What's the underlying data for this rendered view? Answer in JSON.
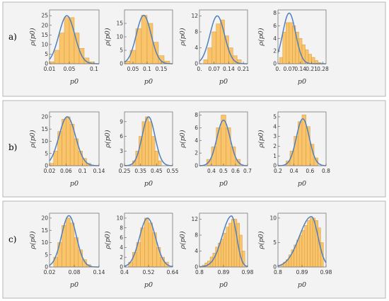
{
  "row_labels": [
    "a)",
    "b)",
    "c)"
  ],
  "chart_data": [
    {
      "type": "bar",
      "row": 0,
      "col": 0,
      "xlabel": "p0",
      "ylabel": "ρ(p0)",
      "xlim": [
        0.01,
        0.11
      ],
      "ylim": [
        0,
        28
      ],
      "xticks": [
        0.01,
        0.05,
        0.1
      ],
      "xtick_labels": [
        "0.01",
        "0.05",
        "0.1"
      ],
      "yticks": [
        0,
        5,
        10,
        15,
        20,
        25
      ],
      "ytick_labels": [
        "0",
        "5",
        "10",
        "15",
        "20",
        "25"
      ],
      "bin_edges": [
        0.01,
        0.02,
        0.03,
        0.04,
        0.05,
        0.06,
        0.07,
        0.08,
        0.09,
        0.1
      ],
      "values": [
        1,
        7,
        16,
        24,
        24,
        16,
        8,
        3,
        1
      ],
      "curve": {
        "mu": 0.045,
        "sigma": 0.016,
        "peak": 25
      }
    },
    {
      "type": "bar",
      "row": 0,
      "col": 1,
      "xlabel": "p0",
      "ylabel": "ρ(p0)",
      "xlim": [
        0.02,
        0.19
      ],
      "ylim": [
        0,
        20
      ],
      "xticks": [
        0.05,
        0.1,
        0.15
      ],
      "xtick_labels": [
        "0.05",
        "0.1",
        "0.15"
      ],
      "yticks": [
        0,
        5,
        10,
        15
      ],
      "ytick_labels": [
        "0",
        "5",
        "10",
        "15"
      ],
      "bin_edges": [
        0.02,
        0.04,
        0.06,
        0.08,
        0.1,
        0.12,
        0.14,
        0.16,
        0.18
      ],
      "values": [
        1,
        5,
        13,
        18,
        15,
        8,
        3,
        1
      ],
      "curve": {
        "mu": 0.088,
        "sigma": 0.026,
        "peak": 18
      }
    },
    {
      "type": "bar",
      "row": 0,
      "col": 2,
      "xlabel": "p0",
      "ylabel": "ρ(p0)",
      "xlim": [
        0,
        0.23
      ],
      "ylim": [
        0,
        13.5
      ],
      "xticks": [
        0,
        0.07,
        0.14,
        0.21
      ],
      "xtick_labels": [
        "0.",
        "0.07",
        "0.14",
        "0.21"
      ],
      "yticks": [
        0,
        4,
        8,
        12
      ],
      "ytick_labels": [
        "0",
        "4",
        "8",
        "12"
      ],
      "bin_edges": [
        0.02,
        0.04,
        0.06,
        0.08,
        0.1,
        0.12,
        0.14,
        0.16,
        0.18,
        0.2
      ],
      "values": [
        1,
        4,
        8,
        10,
        11,
        7,
        4,
        2,
        1
      ],
      "curve": {
        "mu": 0.085,
        "sigma": 0.035,
        "peak": 12
      }
    },
    {
      "type": "bar",
      "row": 0,
      "col": 3,
      "xlabel": "p0",
      "ylabel": "ρ(p0)",
      "xlim": [
        0,
        0.3
      ],
      "ylim": [
        0,
        8.5
      ],
      "xticks": [
        0,
        0.07,
        0.14,
        0.21,
        0.28
      ],
      "xtick_labels": [
        "0.",
        "0.07",
        "0.14",
        "0.21",
        "0.28"
      ],
      "yticks": [
        0,
        2,
        4,
        6,
        8
      ],
      "ytick_labels": [
        "0",
        "2",
        "4",
        "6",
        "8"
      ],
      "bin_edges": [
        0.01,
        0.03,
        0.05,
        0.07,
        0.09,
        0.11,
        0.13,
        0.15,
        0.17,
        0.19,
        0.21,
        0.23,
        0.25,
        0.27
      ],
      "values": [
        1,
        5,
        6.5,
        6.5,
        6,
        5,
        4,
        3,
        2.2,
        1.5,
        1,
        0.5,
        0.2
      ],
      "curve": {
        "mu": 0.07,
        "sigma": 0.04,
        "peak": 8
      }
    },
    {
      "type": "bar",
      "row": 1,
      "col": 0,
      "xlabel": "p0",
      "ylabel": "ρ(p0)",
      "xlim": [
        0.02,
        0.14
      ],
      "ylim": [
        0,
        22
      ],
      "xticks": [
        0.02,
        0.06,
        0.1,
        0.14
      ],
      "xtick_labels": [
        "0.02",
        "0.06",
        "0.1",
        "0.14"
      ],
      "yticks": [
        0,
        5,
        10,
        15,
        20
      ],
      "ytick_labels": [
        "0",
        "5",
        "10",
        "15",
        "20"
      ],
      "bin_edges": [
        0.02,
        0.03,
        0.04,
        0.05,
        0.06,
        0.07,
        0.08,
        0.09,
        0.1,
        0.11,
        0.12
      ],
      "values": [
        1,
        6,
        14,
        19,
        20,
        17,
        11,
        6,
        3,
        1
      ],
      "curve": {
        "mu": 0.063,
        "sigma": 0.02,
        "peak": 20
      }
    },
    {
      "type": "bar",
      "row": 1,
      "col": 1,
      "xlabel": "p0",
      "ylabel": "ρ(p0)",
      "xlim": [
        0.25,
        0.55
      ],
      "ylim": [
        0,
        11
      ],
      "xticks": [
        0.25,
        0.35,
        0.45,
        0.55
      ],
      "xtick_labels": [
        "0.25",
        "0.35",
        "0.45",
        "0.55"
      ],
      "yticks": [
        0,
        3,
        6,
        9
      ],
      "ytick_labels": [
        "0",
        "3",
        "6",
        "9"
      ],
      "bin_edges": [
        0.3,
        0.32,
        0.34,
        0.36,
        0.38,
        0.4,
        0.42,
        0.44,
        0.46,
        0.48
      ],
      "values": [
        1,
        3,
        6,
        9,
        10,
        9,
        6,
        3,
        1
      ],
      "curve": {
        "mu": 0.4,
        "sigma": 0.04,
        "peak": 10
      }
    },
    {
      "type": "bar",
      "row": 1,
      "col": 2,
      "xlabel": "p0",
      "ylabel": "ρ(p0)",
      "xlim": [
        0.3,
        0.7
      ],
      "ylim": [
        0,
        8.5
      ],
      "xticks": [
        0.4,
        0.5,
        0.6,
        0.7
      ],
      "xtick_labels": [
        "0.4",
        "0.5",
        "0.6",
        "0.7"
      ],
      "yticks": [
        0,
        2,
        4,
        6,
        8
      ],
      "ytick_labels": [
        "0",
        "2",
        "4",
        "6",
        "8"
      ],
      "bin_edges": [
        0.36,
        0.4,
        0.44,
        0.48,
        0.52,
        0.56,
        0.6,
        0.64
      ],
      "values": [
        1,
        3,
        6,
        8,
        6,
        3,
        1
      ],
      "curve": {
        "mu": 0.5,
        "sigma": 0.055,
        "peak": 7.2
      }
    },
    {
      "type": "bar",
      "row": 1,
      "col": 3,
      "xlabel": "p0",
      "ylabel": "ρ(p0)",
      "xlim": [
        0.2,
        0.8
      ],
      "ylim": [
        0,
        5.5
      ],
      "xticks": [
        0.2,
        0.4,
        0.6,
        0.8
      ],
      "xtick_labels": [
        "0.2",
        "0.4",
        "0.6",
        "0.8"
      ],
      "yticks": [
        0,
        1,
        2,
        3,
        4,
        5
      ],
      "ytick_labels": [
        "0",
        "1",
        "2",
        "3",
        "4",
        "5"
      ],
      "bin_edges": [
        0.3,
        0.35,
        0.4,
        0.45,
        0.5,
        0.55,
        0.6,
        0.65,
        0.7
      ],
      "values": [
        0.5,
        1.5,
        3,
        4.5,
        5.2,
        4,
        2.2,
        0.8
      ],
      "curve": {
        "mu": 0.51,
        "sigma": 0.08,
        "peak": 4.8
      }
    },
    {
      "type": "bar",
      "row": 2,
      "col": 0,
      "xlabel": "p0",
      "ylabel": "ρ(p0)",
      "xlim": [
        0.02,
        0.14
      ],
      "ylim": [
        0,
        22
      ],
      "xticks": [
        0.02,
        0.08,
        0.14
      ],
      "xtick_labels": [
        "0.02",
        "0.08",
        "0.14"
      ],
      "yticks": [
        0,
        5,
        10,
        15,
        20
      ],
      "ytick_labels": [
        "0",
        "5",
        "10",
        "15",
        "20"
      ],
      "bin_edges": [
        0.03,
        0.04,
        0.05,
        0.06,
        0.07,
        0.08,
        0.09,
        0.1,
        0.11,
        0.12
      ],
      "values": [
        4,
        10,
        17,
        20,
        18,
        12,
        7,
        3,
        1
      ],
      "curve": {
        "mu": 0.067,
        "sigma": 0.018,
        "peak": 21
      }
    },
    {
      "type": "bar",
      "row": 2,
      "col": 1,
      "xlabel": "p0",
      "ylabel": "ρ(p0)",
      "xlim": [
        0.4,
        0.64
      ],
      "ylim": [
        0,
        11
      ],
      "xticks": [
        0.4,
        0.52,
        0.64
      ],
      "xtick_labels": [
        "0.4",
        "0.52",
        "0.64"
      ],
      "yticks": [
        0,
        2,
        4,
        6,
        8,
        10
      ],
      "ytick_labels": [
        "0",
        "2",
        "4",
        "6",
        "8",
        "10"
      ],
      "bin_edges": [
        0.42,
        0.44,
        0.46,
        0.48,
        0.5,
        0.52,
        0.54,
        0.56,
        0.58,
        0.6,
        0.62
      ],
      "values": [
        1,
        3,
        5,
        8,
        10,
        9,
        7,
        4,
        2,
        1
      ],
      "curve": {
        "mu": 0.515,
        "sigma": 0.04,
        "peak": 10
      }
    },
    {
      "type": "bar",
      "row": 2,
      "col": 2,
      "xlabel": "p0",
      "ylabel": "ρ(p0)",
      "xlim": [
        0.8,
        0.98
      ],
      "ylim": [
        0,
        13.5
      ],
      "xticks": [
        0.8,
        0.89,
        0.98
      ],
      "xtick_labels": [
        "0.8",
        "0.89",
        "0.98"
      ],
      "yticks": [
        0,
        4,
        8,
        12
      ],
      "ytick_labels": [
        "0",
        "4",
        "8",
        "12"
      ],
      "bin_edges": [
        0.81,
        0.82,
        0.83,
        0.84,
        0.85,
        0.86,
        0.87,
        0.88,
        0.89,
        0.9,
        0.91,
        0.92,
        0.93,
        0.94,
        0.95,
        0.96,
        0.97
      ],
      "values": [
        0.5,
        1,
        1.5,
        2.5,
        3.5,
        5,
        6,
        7,
        8.5,
        10,
        11,
        12,
        12,
        11,
        8,
        4
      ],
      "curve": {
        "mu": 0.92,
        "sigma": 0.035,
        "peak": 12.8,
        "skew": true
      }
    },
    {
      "type": "bar",
      "row": 2,
      "col": 3,
      "xlabel": "p0",
      "ylabel": "ρ(p0)",
      "xlim": [
        0.8,
        0.98
      ],
      "ylim": [
        0,
        11
      ],
      "xticks": [
        0.8,
        0.89,
        0.98
      ],
      "xtick_labels": [
        "0.8",
        "0.89",
        "0.98"
      ],
      "yticks": [
        0,
        5,
        10
      ],
      "ytick_labels": [
        "0",
        "5",
        "10"
      ],
      "bin_edges": [
        0.81,
        0.82,
        0.83,
        0.84,
        0.85,
        0.86,
        0.87,
        0.88,
        0.89,
        0.9,
        0.91,
        0.92,
        0.93,
        0.94,
        0.95,
        0.96,
        0.97
      ],
      "values": [
        0.5,
        1,
        1.5,
        2.5,
        3.5,
        4.5,
        5.5,
        6.5,
        7.5,
        8.5,
        9.5,
        10,
        10,
        9.5,
        8,
        5
      ],
      "curve": {
        "mu": 0.925,
        "sigma": 0.045,
        "peak": 10.3,
        "skew": true
      }
    }
  ]
}
